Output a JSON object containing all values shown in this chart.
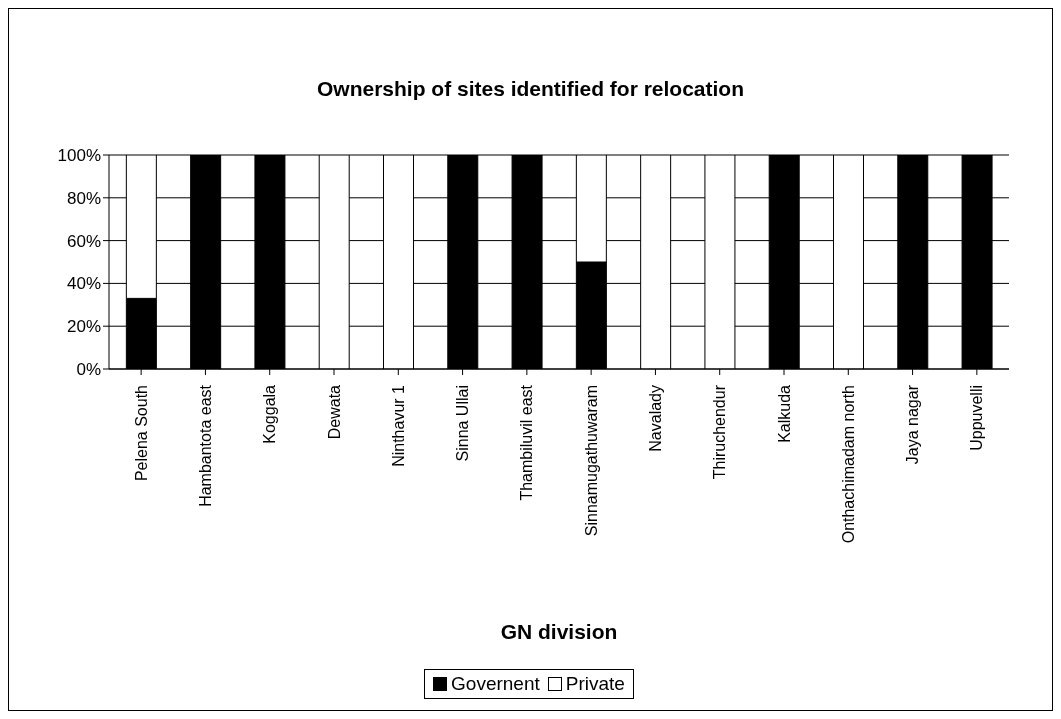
{
  "chart_data": {
    "type": "bar",
    "title": "Ownership of sites identified for relocation",
    "xlabel": "GN division",
    "categories": [
      "Pelena South",
      "Hambantota east",
      "Koggala",
      "Dewata",
      "Ninthavur 1",
      "Sinna Ullai",
      "Thambiluvil east",
      "Sinnamugathuwaram",
      "Navalady",
      "Thiruchendur",
      "Kalkuda",
      "Onthachimadam north",
      "Jaya nagar",
      "Uppuvelli"
    ],
    "series": [
      {
        "name": "Governent",
        "color": "#000000",
        "values": [
          33,
          100,
          100,
          0,
          0,
          100,
          100,
          50,
          0,
          0,
          100,
          0,
          100,
          100
        ]
      },
      {
        "name": "Private",
        "color": "#ffffff",
        "values": [
          67,
          0,
          0,
          100,
          100,
          0,
          0,
          50,
          100,
          100,
          0,
          100,
          0,
          0
        ]
      }
    ],
    "stacked": true,
    "ylim": [
      0,
      100
    ],
    "yticks": [
      {
        "value": 0,
        "label": "0%"
      },
      {
        "value": 20,
        "label": "20%"
      },
      {
        "value": 40,
        "label": "40%"
      },
      {
        "value": 60,
        "label": "60%"
      },
      {
        "value": 80,
        "label": "80%"
      },
      {
        "value": 100,
        "label": "100%"
      }
    ],
    "grid": "y",
    "legend": "bottom"
  }
}
